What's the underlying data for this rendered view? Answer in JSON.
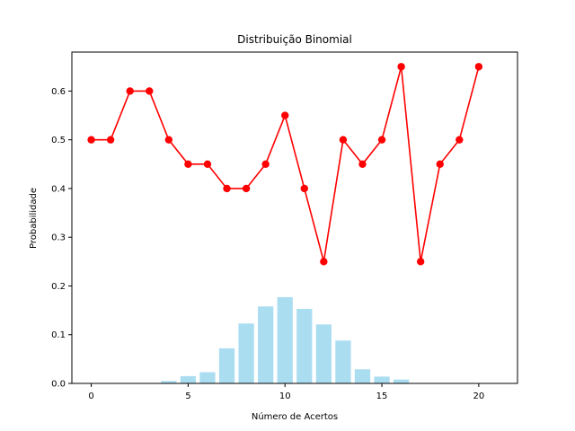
{
  "chart_data": {
    "type": "bar+line",
    "title": "Distribuição Binomial",
    "xlabel": "Número de Acertos",
    "ylabel": "Probabilidade",
    "xlim": [
      -1,
      22
    ],
    "ylim": [
      0,
      0.68
    ],
    "xticks": [
      0,
      5,
      10,
      15,
      20
    ],
    "yticks": [
      0.0,
      0.1,
      0.2,
      0.3,
      0.4,
      0.5,
      0.6
    ],
    "ytick_labels": [
      "0.0",
      "0.1",
      "0.2",
      "0.3",
      "0.4",
      "0.5",
      "0.6"
    ],
    "grid": false,
    "bars": {
      "color": "#87CEEB",
      "x": [
        0,
        1,
        2,
        3,
        4,
        5,
        6,
        7,
        8,
        9,
        10,
        11,
        12,
        13,
        14,
        15,
        16,
        17,
        18,
        19,
        20
      ],
      "values": [
        0.0,
        0.0,
        0.0,
        0.0,
        0.005,
        0.015,
        0.023,
        0.072,
        0.123,
        0.158,
        0.177,
        0.153,
        0.121,
        0.088,
        0.029,
        0.014,
        0.008,
        0.0,
        0.0,
        0.0,
        0.0
      ]
    },
    "line": {
      "color": "#FF0000",
      "x": [
        0,
        1,
        2,
        3,
        4,
        5,
        6,
        7,
        8,
        9,
        10,
        11,
        12,
        13,
        14,
        15,
        16,
        17,
        18,
        19,
        20
      ],
      "values": [
        0.5,
        0.5,
        0.6,
        0.6,
        0.5,
        0.45,
        0.45,
        0.4,
        0.4,
        0.45,
        0.55,
        0.4,
        0.25,
        0.5,
        0.45,
        0.5,
        0.65,
        0.25,
        0.45,
        0.5,
        0.65
      ]
    }
  }
}
